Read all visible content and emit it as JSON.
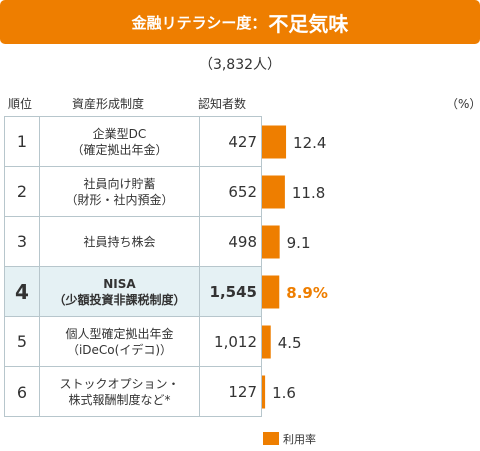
{
  "header": {
    "title_prefix": "金融リテラシー度：",
    "title_main": "不足気味"
  },
  "sample_size": "（3,832人）",
  "columns": {
    "rank": "順位",
    "system": "資産形成制度",
    "awareness": "認知者数",
    "unit": "（%）"
  },
  "legend": {
    "label": "利用率"
  },
  "colors": {
    "accent": "#ee7e00",
    "highlight_bg": "#e5f1f4",
    "border": "#b7c6cc"
  },
  "rows": [
    {
      "rank": "1",
      "name": "企業型DC\n（確定拠出年金）",
      "count": "427",
      "rate_label": "12.4",
      "highlight": false
    },
    {
      "rank": "2",
      "name": "社員向け貯蓄\n（財形・社内預金）",
      "count": "652",
      "rate_label": "11.8",
      "highlight": false
    },
    {
      "rank": "3",
      "name": "社員持ち株会",
      "count": "498",
      "rate_label": "9.1",
      "highlight": false
    },
    {
      "rank": "4",
      "name": "NISA\n（少額投資非課税制度）",
      "count": "1,545",
      "rate_label": "8.9%",
      "highlight": true
    },
    {
      "rank": "5",
      "name": "個人型確定拠出年金\n（iDeCo(イデコ)）",
      "count": "1,012",
      "rate_label": "4.5",
      "highlight": false
    },
    {
      "rank": "6",
      "name": "ストックオプション・\n株式報酬制度など*",
      "count": "127",
      "rate_label": "1.6",
      "highlight": false
    }
  ],
  "chart_data": {
    "type": "bar",
    "categories": [
      "企業型DC（確定拠出年金）",
      "社員向け貯蓄（財形・社内預金）",
      "社員持ち株会",
      "NISA（少額投資非課税制度）",
      "個人型確定拠出年金（iDeCo(イデコ)）",
      "ストックオプション・株式報酬制度など*"
    ],
    "series": [
      {
        "name": "利用率",
        "values": [
          12.4,
          11.8,
          9.1,
          8.9,
          4.5,
          1.6
        ]
      }
    ],
    "ylabel": "（%）"
  }
}
